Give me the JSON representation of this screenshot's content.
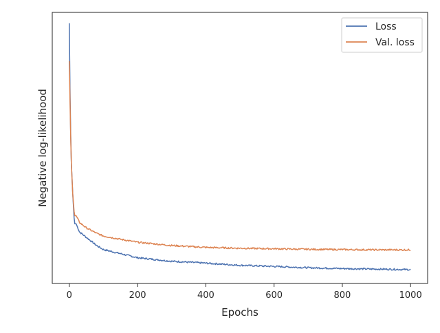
{
  "chart_data": {
    "type": "line",
    "title": "",
    "xlabel": "Epochs",
    "ylabel": "Negative log-likelihood",
    "xlim": [
      -50,
      1050
    ],
    "ylim": [
      0.0,
      1.0
    ],
    "x_ticks": [
      0,
      200,
      400,
      600,
      800,
      1000
    ],
    "x_tick_labels": [
      "0",
      "200",
      "400",
      "600",
      "800",
      "1000"
    ],
    "y_ticks_visible": false,
    "grid": false,
    "legend_position": "top-right",
    "colors": {
      "loss": "#4c72b0",
      "val_loss": "#dd8452",
      "axes": "#262626"
    },
    "series": [
      {
        "name": "Loss",
        "color": "#4c72b0",
        "x": [
          0,
          2,
          5,
          10,
          15,
          20,
          30,
          50,
          80,
          100,
          150,
          200,
          300,
          400,
          500,
          600,
          700,
          800,
          900,
          1000
        ],
        "y": [
          0.96,
          0.72,
          0.47,
          0.33,
          0.22,
          0.22,
          0.19,
          0.17,
          0.14,
          0.125,
          0.11,
          0.095,
          0.082,
          0.075,
          0.067,
          0.063,
          0.058,
          0.055,
          0.053,
          0.051
        ]
      },
      {
        "name": "Val. loss",
        "color": "#dd8452",
        "x": [
          0,
          2,
          5,
          10,
          15,
          20,
          30,
          50,
          80,
          100,
          150,
          200,
          300,
          400,
          500,
          600,
          700,
          800,
          900,
          1000
        ],
        "y": [
          0.82,
          0.68,
          0.47,
          0.33,
          0.25,
          0.25,
          0.225,
          0.205,
          0.185,
          0.175,
          0.163,
          0.152,
          0.14,
          0.133,
          0.13,
          0.128,
          0.126,
          0.125,
          0.124,
          0.124
        ]
      }
    ]
  }
}
